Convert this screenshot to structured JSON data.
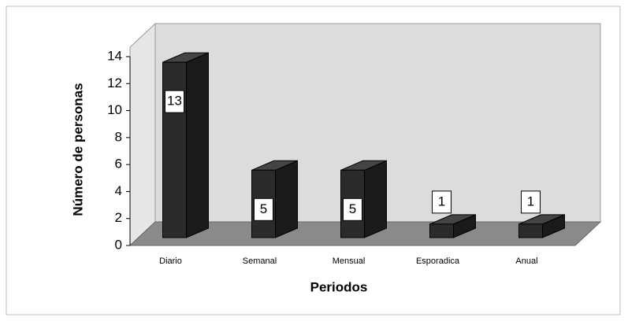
{
  "chart_data": {
    "type": "bar3d",
    "categories": [
      "Diario",
      "Semanal",
      "Mensual",
      "Esporadica",
      "Anual"
    ],
    "values": [
      13,
      5,
      5,
      1,
      1
    ],
    "color": "#2b2b2b",
    "ylim": [
      0,
      14
    ],
    "yticks": [
      0,
      2,
      4,
      6,
      8,
      10,
      12,
      14
    ],
    "ylabel": "Número de personas",
    "xlabel": "Periodos"
  }
}
